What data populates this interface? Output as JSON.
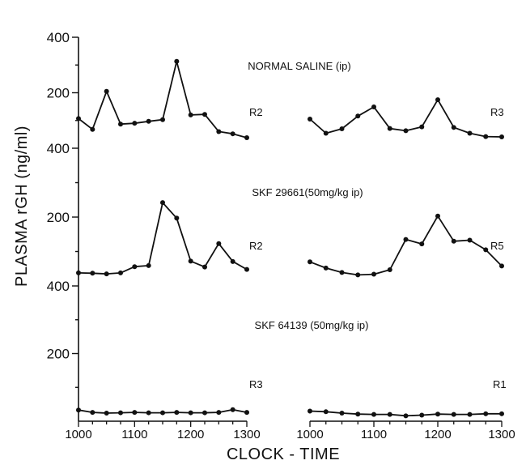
{
  "chart_data": {
    "type": "line",
    "ylabel": "PLASMA rGH (ng/ml)",
    "xlabel": "CLOCK - TIME",
    "y_ticks": [
      "400",
      "200"
    ],
    "x_ticks": [
      "1000",
      "1100",
      "1200",
      "1300"
    ],
    "x_tick_values": [
      1000,
      1100,
      1200,
      1300
    ],
    "ylim": [
      0,
      400
    ],
    "x_range_minutes": [
      600,
      780
    ],
    "rows": [
      {
        "title": "NORMAL SALINE (ip)",
        "panels": [
          {
            "label": "R2",
            "x": [
              600,
              615,
              630,
              645,
              660,
              675,
              690,
              705,
              720,
              735,
              750,
              765,
              780
            ],
            "y": [
              107,
              68,
              205,
              87,
              90,
              97,
              103,
              313,
              120,
              122,
              60,
              52,
              38
            ]
          },
          {
            "label": "R3",
            "x": [
              600,
              615,
              630,
              645,
              660,
              675,
              690,
              705,
              720,
              735,
              750,
              765,
              780
            ],
            "y": [
              105,
              54,
              70,
              116,
              149,
              71,
              63,
              77,
              175,
              75,
              54,
              42,
              41
            ]
          }
        ]
      },
      {
        "title": "SKF 29661(50mg/kg ip)",
        "panels": [
          {
            "label": "R2",
            "x": [
              600,
              615,
              630,
              645,
              660,
              675,
              690,
              705,
              720,
              735,
              750,
              765,
              780
            ],
            "y": [
              38,
              37,
              35,
              38,
              56,
              59,
              242,
              197,
              72,
              55,
              123,
              71,
              48
            ]
          },
          {
            "label": "R5",
            "x": [
              600,
              615,
              630,
              645,
              660,
              675,
              690,
              705,
              720,
              735,
              750,
              765,
              780
            ],
            "y": [
              70,
              52,
              39,
              32,
              34,
              47,
              135,
              122,
              203,
              130,
              133,
              105,
              58
            ]
          }
        ]
      },
      {
        "title": "SKF 64139 (50mg/kg ip)",
        "panels": [
          {
            "label": "R3",
            "x": [
              600,
              615,
              630,
              645,
              660,
              675,
              690,
              705,
              720,
              735,
              750,
              765,
              780
            ],
            "y": [
              33,
              26,
              24,
              25,
              26,
              25,
              25,
              26,
              25,
              25,
              26,
              34,
              26
            ]
          },
          {
            "label": "R1",
            "x": [
              600,
              615,
              630,
              645,
              660,
              675,
              690,
              705,
              720,
              735,
              750,
              765,
              780
            ],
            "y": [
              30,
              28,
              24,
              21,
              20,
              20,
              16,
              18,
              21,
              20,
              20,
              22,
              22
            ]
          }
        ]
      }
    ]
  }
}
